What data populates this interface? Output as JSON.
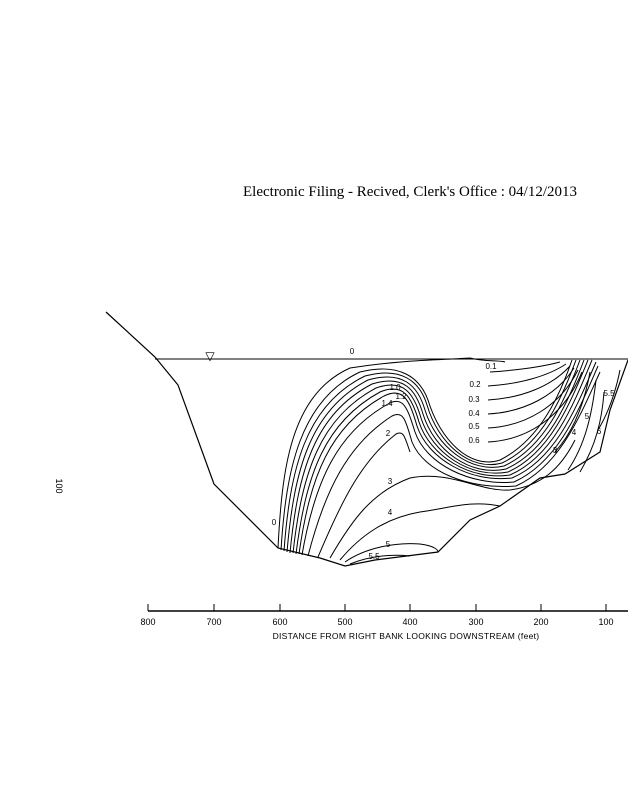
{
  "header": {
    "filing_stamp": "Electronic Filing - Recived, Clerk's Office :  04/12/2013"
  },
  "figure": {
    "page_number": "100",
    "x_axis": {
      "title": "DISTANCE FROM RIGHT BANK LOOKING DOWNSTREAM (feet)",
      "ticks": [
        "800",
        "700",
        "600",
        "500",
        "400",
        "300",
        "200",
        "100"
      ]
    },
    "water_surface_symbol": "▽",
    "contour_labels": {
      "c0_surface": "0",
      "c0_left": "0",
      "c01": "0.1",
      "c02": "0.2",
      "c03": "0.3",
      "c04": "0.4",
      "c05": "0.5",
      "c06": "0.6",
      "c10": "1.0",
      "c12": "1.2",
      "c14": "1.4",
      "c2": "2",
      "c3": "3",
      "c3b": "3",
      "c4": "4",
      "c4b": "4",
      "c5": "5",
      "c5b": "5",
      "c55": "5.5",
      "c55b": "5.5",
      "c6": "6"
    }
  }
}
